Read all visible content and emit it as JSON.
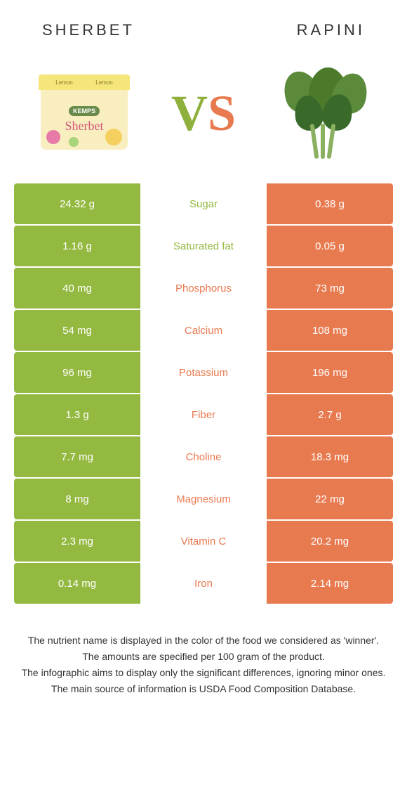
{
  "colors": {
    "left_bg": "#94b941",
    "right_bg": "#e87a50",
    "left_text": "#94b941",
    "right_text": "#e87a50"
  },
  "header": {
    "left_title": "Sherbet",
    "right_title": "Rapini",
    "vs_v": "V",
    "vs_s": "S",
    "cup_lid_text1": "Lemon",
    "cup_lid_text2": "Lemon",
    "cup_brand": "KEMPS",
    "cup_script": "Sherbet"
  },
  "rows": [
    {
      "left": "24.32 g",
      "label": "Sugar",
      "right": "0.38 g",
      "winner": "left"
    },
    {
      "left": "1.16 g",
      "label": "Saturated fat",
      "right": "0.05 g",
      "winner": "left"
    },
    {
      "left": "40 mg",
      "label": "Phosphorus",
      "right": "73 mg",
      "winner": "right"
    },
    {
      "left": "54 mg",
      "label": "Calcium",
      "right": "108 mg",
      "winner": "right"
    },
    {
      "left": "96 mg",
      "label": "Potassium",
      "right": "196 mg",
      "winner": "right"
    },
    {
      "left": "1.3 g",
      "label": "Fiber",
      "right": "2.7 g",
      "winner": "right"
    },
    {
      "left": "7.7 mg",
      "label": "Choline",
      "right": "18.3 mg",
      "winner": "right"
    },
    {
      "left": "8 mg",
      "label": "Magnesium",
      "right": "22 mg",
      "winner": "right"
    },
    {
      "left": "2.3 mg",
      "label": "Vitamin C",
      "right": "20.2 mg",
      "winner": "right"
    },
    {
      "left": "0.14 mg",
      "label": "Iron",
      "right": "2.14 mg",
      "winner": "right"
    }
  ],
  "footer": {
    "line1": "The nutrient name is displayed in the color of the food we considered as 'winner'.",
    "line2": "The amounts are specified per 100 gram of the product.",
    "line3": "The infographic aims to display only the significant differences, ignoring minor ones.",
    "line4": "The main source of information is USDA Food Composition Database."
  }
}
